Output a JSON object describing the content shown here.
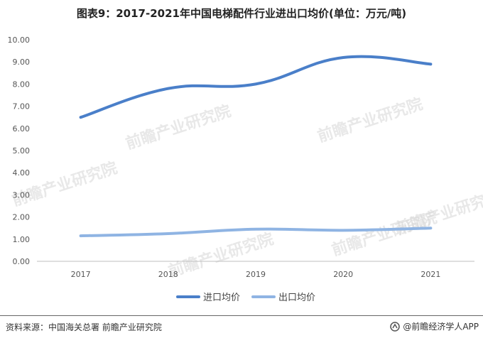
{
  "title": "图表9：2017-2021年中国电梯配件行业进出口均价(单位：万元/吨)",
  "source": "资料来源：中国海关总署 前瞻产业研究院",
  "brand": "@前瞻经济学人APP",
  "watermark": "前瞻产业研究院",
  "colors": {
    "import": "#4a7fc9",
    "export": "#8fb4e3",
    "grid": "#d9d9d9",
    "axis": "#bfbfbf"
  },
  "chart_data": {
    "type": "line",
    "categories": [
      "2017",
      "2018",
      "2019",
      "2020",
      "2021"
    ],
    "yticks": [
      "0.00",
      "1.00",
      "2.00",
      "3.00",
      "4.00",
      "5.00",
      "6.00",
      "7.00",
      "8.00",
      "9.00",
      "10.00"
    ],
    "ylim": [
      0,
      10
    ],
    "grid": false,
    "legend_position": "bottom",
    "series": [
      {
        "name": "进口均价",
        "values": [
          6.5,
          7.8,
          8.0,
          9.2,
          8.9
        ]
      },
      {
        "name": "出口均价",
        "values": [
          1.15,
          1.25,
          1.45,
          1.4,
          1.5
        ]
      }
    ]
  }
}
